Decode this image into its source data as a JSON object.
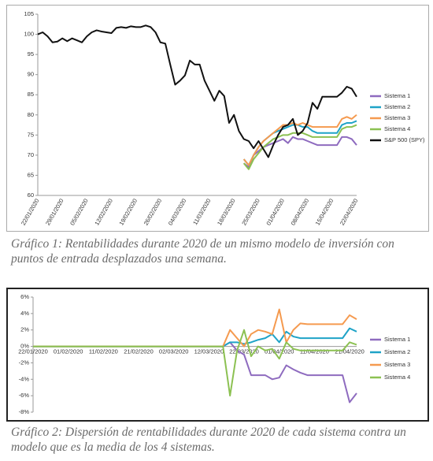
{
  "chart_data": [
    {
      "type": "line",
      "caption": "Gráfico 1: Rentabilidades durante 2020 de un mismo modelo de inversión con puntos de entrada desplazados una semana.",
      "categories": [
        "22/01/2020",
        null,
        null,
        null,
        null,
        "29/01/2020",
        null,
        null,
        null,
        null,
        "05/02/2020",
        null,
        null,
        null,
        null,
        "12/02/2020",
        null,
        null,
        null,
        null,
        "19/02/2020",
        null,
        null,
        null,
        null,
        "26/02/2020",
        null,
        null,
        null,
        null,
        "04/03/2020",
        null,
        null,
        null,
        null,
        "11/03/2020",
        null,
        null,
        null,
        null,
        "18/03/2020",
        null,
        null,
        null,
        null,
        "25/03/2020",
        null,
        null,
        null,
        null,
        "01/04/2020",
        null,
        null,
        null,
        null,
        "08/04/2020",
        null,
        null,
        null,
        null,
        "15/04/2020",
        null,
        null,
        null,
        null,
        "22/04/2020"
      ],
      "ylim": [
        60,
        105
      ],
      "yticks": [
        60,
        65,
        70,
        75,
        80,
        85,
        90,
        95,
        100,
        105
      ],
      "legend": "right",
      "series": [
        {
          "name": "Sistema 1",
          "color": "#8e6bbf",
          "values": [
            null,
            null,
            null,
            null,
            null,
            null,
            null,
            null,
            null,
            null,
            null,
            null,
            null,
            null,
            null,
            null,
            null,
            null,
            null,
            null,
            null,
            null,
            null,
            null,
            null,
            null,
            null,
            null,
            null,
            null,
            null,
            null,
            null,
            null,
            null,
            null,
            null,
            null,
            null,
            null,
            null,
            null,
            68,
            67,
            70,
            71,
            72,
            72.5,
            73,
            73.5,
            74,
            73,
            74.5,
            74,
            74,
            73.5,
            73,
            72.5,
            72.5,
            72.5,
            72.5,
            72.5,
            74.5,
            74.5,
            74,
            72.5
          ]
        },
        {
          "name": "Sistema 2",
          "color": "#1fa3c7",
          "values": [
            null,
            null,
            null,
            null,
            null,
            null,
            null,
            null,
            null,
            null,
            null,
            null,
            null,
            null,
            null,
            null,
            null,
            null,
            null,
            null,
            null,
            null,
            null,
            null,
            null,
            null,
            null,
            null,
            null,
            null,
            null,
            null,
            null,
            null,
            null,
            null,
            null,
            null,
            null,
            null,
            null,
            null,
            69,
            67.5,
            70,
            72,
            73.5,
            74.5,
            75.5,
            76,
            76.5,
            77,
            77.5,
            77.5,
            77,
            77,
            76,
            75.5,
            75.5,
            75.5,
            75.5,
            75.5,
            77.5,
            78,
            78,
            78.5
          ]
        },
        {
          "name": "Sistema 3",
          "color": "#f59a4f",
          "values": [
            null,
            null,
            null,
            null,
            null,
            null,
            null,
            null,
            null,
            null,
            null,
            null,
            null,
            null,
            null,
            null,
            null,
            null,
            null,
            null,
            null,
            null,
            null,
            null,
            null,
            null,
            null,
            null,
            null,
            null,
            null,
            null,
            null,
            null,
            null,
            null,
            null,
            null,
            null,
            null,
            null,
            null,
            69,
            67.5,
            70,
            72,
            73.5,
            74.5,
            75.5,
            76.5,
            77.5,
            77.5,
            78,
            77.5,
            78,
            77.5,
            77,
            77,
            77,
            77,
            77,
            77,
            79,
            79.5,
            79,
            80
          ]
        },
        {
          "name": "Sistema 4",
          "color": "#8cc152",
          "values": [
            null,
            null,
            null,
            null,
            null,
            null,
            null,
            null,
            null,
            null,
            null,
            null,
            null,
            null,
            null,
            null,
            null,
            null,
            null,
            null,
            null,
            null,
            null,
            null,
            null,
            null,
            null,
            null,
            null,
            null,
            null,
            null,
            null,
            null,
            null,
            null,
            null,
            null,
            null,
            null,
            null,
            null,
            68,
            66.5,
            69,
            70.5,
            72,
            73,
            74,
            74.5,
            75,
            75,
            75.5,
            75.5,
            75.5,
            75,
            74.5,
            74.5,
            74.5,
            74.5,
            74.5,
            74.5,
            76.5,
            77,
            77,
            77.5
          ]
        },
        {
          "name": "S&P 500 (SPY)",
          "color": "#111111",
          "values": [
            100,
            100.5,
            99.5,
            98,
            98.2,
            99,
            98.3,
            99,
            98.5,
            98,
            99.5,
            100.5,
            101,
            100.7,
            100.5,
            100.3,
            101.6,
            101.8,
            101.6,
            102,
            101.8,
            101.8,
            102.2,
            101.8,
            100.5,
            98,
            97.7,
            92.5,
            87.5,
            88.5,
            89.8,
            93.5,
            92.5,
            92.5,
            88.5,
            86,
            83.5,
            86,
            84.7,
            78,
            80,
            76,
            74,
            73.5,
            71.7,
            73.5,
            71.5,
            69.5,
            72.5,
            75,
            77,
            77.5,
            79,
            75,
            76,
            78,
            83,
            81.5,
            84.5,
            84.5,
            84.5,
            84.5,
            85.5,
            87,
            86.5,
            84.5
          ]
        }
      ]
    },
    {
      "type": "line",
      "caption": "Gráfico 2: Dispersión de rentabilidades durante 2020 de cada sistema contra un modelo que es la media de los 4 sistemas.",
      "categories": [
        "22/01/2020",
        null,
        null,
        null,
        null,
        "01/02/2020",
        null,
        null,
        null,
        null,
        "11/02/2020",
        null,
        null,
        null,
        null,
        "21/02/2020",
        null,
        null,
        null,
        null,
        "02/03/2020",
        null,
        null,
        null,
        null,
        "12/03/2020",
        null,
        null,
        null,
        null,
        "22/03/2020",
        null,
        null,
        null,
        null,
        "01/04/2020",
        null,
        null,
        null,
        null,
        "11/04/2020",
        null,
        null,
        null,
        null,
        "21/04/2020",
        null
      ],
      "ylim": [
        -8,
        6
      ],
      "yticks": [
        {
          "value": -8,
          "label": "-8%"
        },
        {
          "value": -6,
          "label": "-6%"
        },
        {
          "value": -4,
          "label": "-4%"
        },
        {
          "value": -2,
          "label": "-2%"
        },
        {
          "value": 0,
          "label": "0%"
        },
        {
          "value": 2,
          "label": "2%"
        },
        {
          "value": 4,
          "label": "4%"
        },
        {
          "value": 6,
          "label": "6%"
        }
      ],
      "legend": "right",
      "series": [
        {
          "name": "Sistema 1",
          "color": "#8e6bbf",
          "values": [
            0,
            0,
            0,
            0,
            0,
            0,
            0,
            0,
            0,
            0,
            0,
            0,
            0,
            0,
            0,
            0,
            0,
            0,
            0,
            0,
            0,
            0,
            0,
            0,
            0,
            0,
            0,
            0,
            0.5,
            -0.5,
            -1,
            -3.5,
            -3.5,
            -3.5,
            -4,
            -3.8,
            -2.3,
            -2.8,
            -3.2,
            -3.5,
            -3.5,
            -3.5,
            -3.5,
            -3.5,
            -3.5,
            -6.8,
            -5.7
          ]
        },
        {
          "name": "Sistema 2",
          "color": "#1fa3c7",
          "values": [
            0,
            0,
            0,
            0,
            0,
            0,
            0,
            0,
            0,
            0,
            0,
            0,
            0,
            0,
            0,
            0,
            0,
            0,
            0,
            0,
            0,
            0,
            0,
            0,
            0,
            0,
            0,
            0,
            0.5,
            0.5,
            0.3,
            0.5,
            0.8,
            1,
            1.5,
            0.5,
            1.8,
            1.2,
            1,
            1,
            1,
            1,
            1,
            1,
            1,
            2.2,
            1.8
          ]
        },
        {
          "name": "Sistema 3",
          "color": "#f59a4f",
          "values": [
            0,
            0,
            0,
            0,
            0,
            0,
            0,
            0,
            0,
            0,
            0,
            0,
            0,
            0,
            0,
            0,
            0,
            0,
            0,
            0,
            0,
            0,
            0,
            0,
            0,
            0,
            0,
            0,
            2,
            1,
            0,
            1.5,
            2,
            1.8,
            1.5,
            4.5,
            0.5,
            2,
            2.8,
            2.7,
            2.7,
            2.7,
            2.7,
            2.7,
            2.7,
            3.8,
            3.3
          ]
        },
        {
          "name": "Sistema 4",
          "color": "#8cc152",
          "values": [
            0,
            0,
            0,
            0,
            0,
            0,
            0,
            0,
            0,
            0,
            0,
            0,
            0,
            0,
            0,
            0,
            0,
            0,
            0,
            0,
            0,
            0,
            0,
            0,
            0,
            0,
            0,
            0,
            -6,
            -0.5,
            2,
            -1.2,
            0,
            -0.5,
            -0.3,
            -1.5,
            0.5,
            -0.3,
            -0.5,
            -0.5,
            -0.5,
            -0.5,
            -0.5,
            -0.5,
            -0.5,
            0.5,
            0.2
          ]
        }
      ]
    }
  ]
}
